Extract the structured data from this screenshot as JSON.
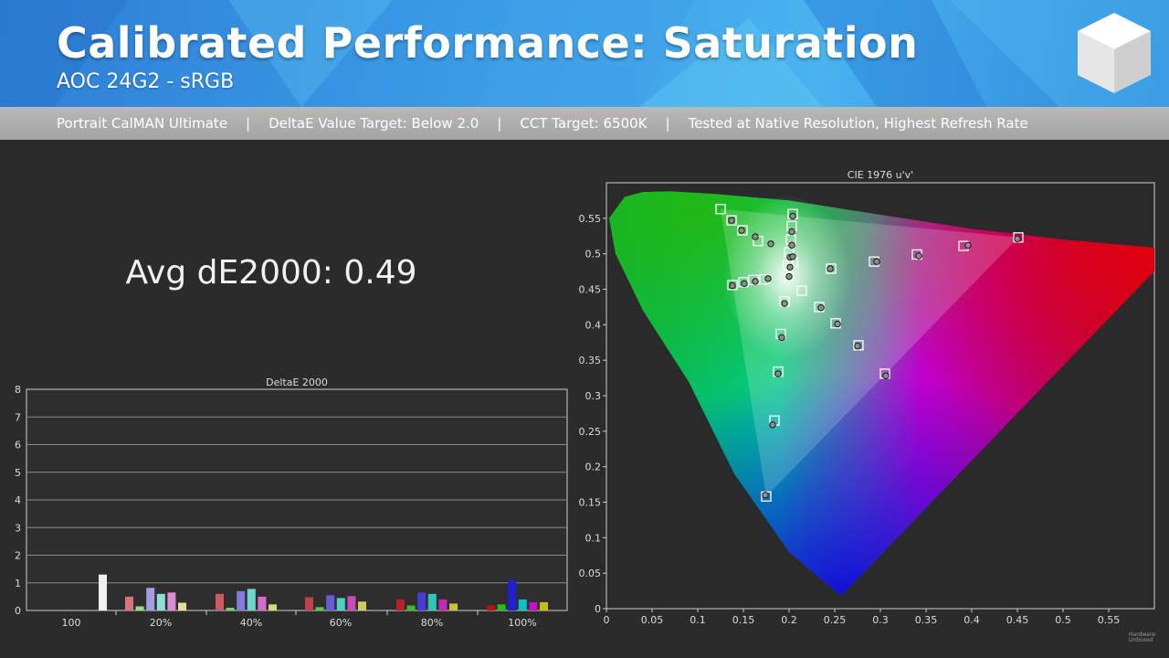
{
  "header": {
    "title": "Calibrated Performance: Saturation",
    "subtitle": "AOC 24G2 - sRGB"
  },
  "info_bar": {
    "items": [
      "Portrait CalMAN Ultimate",
      "DeltaE Value Target: Below 2.0",
      "CCT Target: 6500K",
      "Tested at Native Resolution, Highest Refresh Rate"
    ],
    "separator": "|"
  },
  "summary": {
    "avg_text": "Avg dE2000: 0.49"
  },
  "watermark": {
    "line1": "Hardware",
    "line2": "Unboxed"
  },
  "colors": {
    "accent": "#3a9be6",
    "background": "#2b2b2b"
  },
  "chart_data": [
    {
      "type": "bar",
      "title": "DeltaE 2000",
      "ylim": [
        0,
        8
      ],
      "yticks": [
        0,
        1,
        2,
        3,
        4,
        5,
        6,
        7,
        8
      ],
      "groups": [
        {
          "label": "100",
          "bars": [
            {
              "color": "#f0f0f0",
              "value": 1.3
            }
          ]
        },
        {
          "label": "20%",
          "bars": [
            {
              "color": "#d9737a",
              "value": 0.5
            },
            {
              "color": "#9bd98f",
              "value": 0.15
            },
            {
              "color": "#a79be6",
              "value": 0.82
            },
            {
              "color": "#8be0d6",
              "value": 0.6
            },
            {
              "color": "#de8ad6",
              "value": 0.65
            },
            {
              "color": "#e0df9a",
              "value": 0.28
            }
          ]
        },
        {
          "label": "40%",
          "bars": [
            {
              "color": "#cc5a63",
              "value": 0.6
            },
            {
              "color": "#73d46a",
              "value": 0.1
            },
            {
              "color": "#8479dc",
              "value": 0.7
            },
            {
              "color": "#6dd8cc",
              "value": 0.78
            },
            {
              "color": "#d46ac9",
              "value": 0.5
            },
            {
              "color": "#d8d67a",
              "value": 0.22
            }
          ]
        },
        {
          "label": "60%",
          "bars": [
            {
              "color": "#c0404a",
              "value": 0.48
            },
            {
              "color": "#55cc4e",
              "value": 0.12
            },
            {
              "color": "#675adb",
              "value": 0.55
            },
            {
              "color": "#4fd0c0",
              "value": 0.45
            },
            {
              "color": "#c94bbb",
              "value": 0.52
            },
            {
              "color": "#d0cc5a",
              "value": 0.32
            }
          ]
        },
        {
          "label": "80%",
          "bars": [
            {
              "color": "#b8202c",
              "value": 0.4
            },
            {
              "color": "#33c32c",
              "value": 0.18
            },
            {
              "color": "#4a3ad6",
              "value": 0.65
            },
            {
              "color": "#2ec6b4",
              "value": 0.6
            },
            {
              "color": "#c02eae",
              "value": 0.4
            },
            {
              "color": "#c8c23a",
              "value": 0.25
            }
          ]
        },
        {
          "label": "100%",
          "bars": [
            {
              "color": "#c01010",
              "value": 0.18
            },
            {
              "color": "#20c020",
              "value": 0.22
            },
            {
              "color": "#2020d0",
              "value": 1.1
            },
            {
              "color": "#10c0c0",
              "value": 0.4
            },
            {
              "color": "#c010c0",
              "value": 0.3
            },
            {
              "color": "#c0c010",
              "value": 0.3
            }
          ]
        }
      ]
    },
    {
      "type": "scatter",
      "title": "CIE 1976 u'v'",
      "xlim": [
        0,
        0.6
      ],
      "ylim": [
        0,
        0.6
      ],
      "xticks": [
        0,
        0.05,
        0.1,
        0.15,
        0.2,
        0.25,
        0.3,
        0.35,
        0.4,
        0.45,
        0.5,
        0.55
      ],
      "yticks": [
        0,
        0.05,
        0.1,
        0.15,
        0.2,
        0.25,
        0.3,
        0.35,
        0.4,
        0.45,
        0.5,
        0.55
      ],
      "locus": [
        [
          0.257,
          0.018
        ],
        [
          0.2,
          0.08
        ],
        [
          0.14,
          0.19
        ],
        [
          0.09,
          0.32
        ],
        [
          0.04,
          0.42
        ],
        [
          0.01,
          0.5
        ],
        [
          0.003,
          0.55
        ],
        [
          0.02,
          0.58
        ],
        [
          0.04,
          0.587
        ],
        [
          0.07,
          0.588
        ],
        [
          0.12,
          0.584
        ],
        [
          0.2,
          0.575
        ],
        [
          0.3,
          0.555
        ],
        [
          0.4,
          0.535
        ],
        [
          0.5,
          0.52
        ],
        [
          0.623,
          0.506
        ]
      ],
      "gamut": [
        [
          0.451,
          0.523
        ],
        [
          0.125,
          0.563
        ],
        [
          0.175,
          0.158
        ]
      ],
      "white": [
        0.198,
        0.468
      ],
      "targets": [
        [
          0.173,
          0.464
        ],
        [
          0.161,
          0.463
        ],
        [
          0.15,
          0.46
        ],
        [
          0.138,
          0.456
        ],
        [
          0.199,
          0.484
        ],
        [
          0.2,
          0.502
        ],
        [
          0.202,
          0.52
        ],
        [
          0.203,
          0.539
        ],
        [
          0.204,
          0.556
        ],
        [
          0.204,
          0.488
        ],
        [
          0.166,
          0.518
        ],
        [
          0.149,
          0.533
        ],
        [
          0.137,
          0.547
        ],
        [
          0.125,
          0.563
        ],
        [
          0.246,
          0.479
        ],
        [
          0.293,
          0.489
        ],
        [
          0.34,
          0.499
        ],
        [
          0.391,
          0.511
        ],
        [
          0.451,
          0.523
        ],
        [
          0.214,
          0.448
        ],
        [
          0.233,
          0.425
        ],
        [
          0.251,
          0.402
        ],
        [
          0.276,
          0.371
        ],
        [
          0.305,
          0.331
        ],
        [
          0.195,
          0.433
        ],
        [
          0.191,
          0.387
        ],
        [
          0.188,
          0.334
        ],
        [
          0.184,
          0.265
        ],
        [
          0.175,
          0.158
        ]
      ],
      "measured": [
        [
          0.177,
          0.465
        ],
        [
          0.163,
          0.461
        ],
        [
          0.151,
          0.458
        ],
        [
          0.138,
          0.455
        ],
        [
          0.201,
          0.481
        ],
        [
          0.201,
          0.495
        ],
        [
          0.203,
          0.512
        ],
        [
          0.203,
          0.531
        ],
        [
          0.204,
          0.553
        ],
        [
          0.204,
          0.496
        ],
        [
          0.18,
          0.514
        ],
        [
          0.163,
          0.524
        ],
        [
          0.148,
          0.533
        ],
        [
          0.137,
          0.547
        ],
        [
          0.245,
          0.479
        ],
        [
          0.296,
          0.489
        ],
        [
          0.342,
          0.497
        ],
        [
          0.396,
          0.512
        ],
        [
          0.45,
          0.521
        ],
        [
          0.2,
          0.468
        ],
        [
          0.235,
          0.424
        ],
        [
          0.253,
          0.401
        ],
        [
          0.275,
          0.37
        ],
        [
          0.306,
          0.328
        ],
        [
          0.195,
          0.43
        ],
        [
          0.192,
          0.382
        ],
        [
          0.188,
          0.331
        ],
        [
          0.182,
          0.259
        ],
        [
          0.174,
          0.16
        ]
      ]
    }
  ]
}
